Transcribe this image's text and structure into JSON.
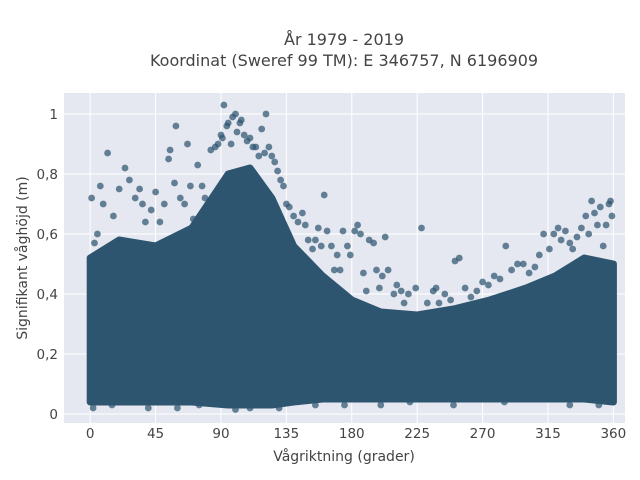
{
  "chart_data": {
    "type": "scatter",
    "title_line1": "År 1979 - 2019",
    "title_line2": "Koordinat (Sweref 99 TM): E 346757, N 6196909",
    "xlabel": "Vågriktning (grader)",
    "ylabel": "Signifikant våghöjd (m)",
    "xlim": [
      -18,
      368
    ],
    "ylim": [
      -0.03,
      1.07
    ],
    "x_ticks": [
      0,
      45,
      90,
      135,
      180,
      225,
      270,
      315,
      360
    ],
    "x_tick_labels": [
      "0",
      "45",
      "90",
      "135",
      "180",
      "225",
      "270",
      "315",
      "360"
    ],
    "y_ticks": [
      0,
      0.2,
      0.4,
      0.6,
      0.8,
      1
    ],
    "y_tick_labels": [
      "0",
      "0,2",
      "0,4",
      "0,6",
      "0,8",
      "1"
    ],
    "grid": true,
    "background_color": "#E5E8F0",
    "marker_color": "#2E5570",
    "bulk_band": [
      [
        0,
        0.04,
        0.52
      ],
      [
        20,
        0.04,
        0.58
      ],
      [
        45,
        0.04,
        0.56
      ],
      [
        70,
        0.04,
        0.62
      ],
      [
        95,
        0.03,
        0.8
      ],
      [
        110,
        0.03,
        0.82
      ],
      [
        125,
        0.03,
        0.72
      ],
      [
        140,
        0.04,
        0.56
      ],
      [
        160,
        0.05,
        0.46
      ],
      [
        180,
        0.05,
        0.38
      ],
      [
        200,
        0.05,
        0.34
      ],
      [
        225,
        0.05,
        0.33
      ],
      [
        250,
        0.05,
        0.35
      ],
      [
        275,
        0.05,
        0.38
      ],
      [
        300,
        0.05,
        0.42
      ],
      [
        320,
        0.05,
        0.46
      ],
      [
        340,
        0.05,
        0.52
      ],
      [
        360,
        0.04,
        0.5
      ]
    ],
    "points": [
      [
        1,
        0.72
      ],
      [
        3,
        0.57
      ],
      [
        5,
        0.6
      ],
      [
        7,
        0.76
      ],
      [
        9,
        0.7
      ],
      [
        12,
        0.87
      ],
      [
        16,
        0.66
      ],
      [
        20,
        0.75
      ],
      [
        24,
        0.82
      ],
      [
        27,
        0.78
      ],
      [
        31,
        0.72
      ],
      [
        34,
        0.75
      ],
      [
        36,
        0.7
      ],
      [
        38,
        0.64
      ],
      [
        42,
        0.68
      ],
      [
        45,
        0.74
      ],
      [
        48,
        0.64
      ],
      [
        51,
        0.7
      ],
      [
        54,
        0.85
      ],
      [
        55,
        0.88
      ],
      [
        58,
        0.77
      ],
      [
        59,
        0.96
      ],
      [
        62,
        0.72
      ],
      [
        65,
        0.7
      ],
      [
        67,
        0.9
      ],
      [
        69,
        0.76
      ],
      [
        71,
        0.65
      ],
      [
        74,
        0.83
      ],
      [
        77,
        0.76
      ],
      [
        79,
        0.72
      ],
      [
        83,
        0.88
      ],
      [
        86,
        0.89
      ],
      [
        88,
        0.9
      ],
      [
        90,
        0.93
      ],
      [
        91,
        0.92
      ],
      [
        92,
        1.03
      ],
      [
        94,
        0.96
      ],
      [
        95,
        0.97
      ],
      [
        97,
        0.9
      ],
      [
        98,
        0.99
      ],
      [
        100,
        1.0
      ],
      [
        101,
        0.94
      ],
      [
        103,
        0.97
      ],
      [
        104,
        0.98
      ],
      [
        106,
        0.93
      ],
      [
        108,
        0.91
      ],
      [
        110,
        0.92
      ],
      [
        112,
        0.89
      ],
      [
        114,
        0.89
      ],
      [
        116,
        0.86
      ],
      [
        118,
        0.95
      ],
      [
        120,
        0.87
      ],
      [
        121,
        1.0
      ],
      [
        123,
        0.89
      ],
      [
        125,
        0.86
      ],
      [
        127,
        0.84
      ],
      [
        129,
        0.81
      ],
      [
        131,
        0.78
      ],
      [
        133,
        0.76
      ],
      [
        135,
        0.7
      ],
      [
        137,
        0.69
      ],
      [
        140,
        0.66
      ],
      [
        143,
        0.64
      ],
      [
        146,
        0.67
      ],
      [
        148,
        0.63
      ],
      [
        150,
        0.58
      ],
      [
        153,
        0.55
      ],
      [
        155,
        0.58
      ],
      [
        157,
        0.62
      ],
      [
        159,
        0.56
      ],
      [
        161,
        0.73
      ],
      [
        163,
        0.61
      ],
      [
        166,
        0.56
      ],
      [
        168,
        0.48
      ],
      [
        170,
        0.53
      ],
      [
        172,
        0.48
      ],
      [
        174,
        0.61
      ],
      [
        177,
        0.56
      ],
      [
        179,
        0.53
      ],
      [
        182,
        0.61
      ],
      [
        184,
        0.63
      ],
      [
        186,
        0.6
      ],
      [
        188,
        0.47
      ],
      [
        190,
        0.41
      ],
      [
        192,
        0.58
      ],
      [
        195,
        0.57
      ],
      [
        197,
        0.48
      ],
      [
        199,
        0.42
      ],
      [
        201,
        0.46
      ],
      [
        203,
        0.59
      ],
      [
        205,
        0.48
      ],
      [
        209,
        0.4
      ],
      [
        211,
        0.43
      ],
      [
        214,
        0.41
      ],
      [
        216,
        0.37
      ],
      [
        219,
        0.4
      ],
      [
        224,
        0.42
      ],
      [
        228,
        0.62
      ],
      [
        232,
        0.37
      ],
      [
        236,
        0.41
      ],
      [
        238,
        0.42
      ],
      [
        240,
        0.37
      ],
      [
        244,
        0.4
      ],
      [
        248,
        0.38
      ],
      [
        251,
        0.51
      ],
      [
        254,
        0.52
      ],
      [
        258,
        0.42
      ],
      [
        262,
        0.39
      ],
      [
        266,
        0.41
      ],
      [
        270,
        0.44
      ],
      [
        274,
        0.43
      ],
      [
        278,
        0.46
      ],
      [
        282,
        0.45
      ],
      [
        286,
        0.56
      ],
      [
        290,
        0.48
      ],
      [
        294,
        0.5
      ],
      [
        298,
        0.5
      ],
      [
        302,
        0.47
      ],
      [
        306,
        0.49
      ],
      [
        309,
        0.53
      ],
      [
        312,
        0.6
      ],
      [
        316,
        0.55
      ],
      [
        319,
        0.6
      ],
      [
        322,
        0.62
      ],
      [
        324,
        0.58
      ],
      [
        327,
        0.61
      ],
      [
        330,
        0.57
      ],
      [
        332,
        0.55
      ],
      [
        335,
        0.59
      ],
      [
        338,
        0.62
      ],
      [
        341,
        0.66
      ],
      [
        343,
        0.6
      ],
      [
        345,
        0.71
      ],
      [
        347,
        0.67
      ],
      [
        349,
        0.63
      ],
      [
        351,
        0.69
      ],
      [
        353,
        0.56
      ],
      [
        355,
        0.63
      ],
      [
        357,
        0.7
      ],
      [
        358,
        0.71
      ],
      [
        359,
        0.66
      ],
      [
        2,
        0.02
      ],
      [
        15,
        0.03
      ],
      [
        40,
        0.02
      ],
      [
        60,
        0.02
      ],
      [
        75,
        0.03
      ],
      [
        100,
        0.015
      ],
      [
        110,
        0.02
      ],
      [
        130,
        0.02
      ],
      [
        155,
        0.03
      ],
      [
        175,
        0.03
      ],
      [
        200,
        0.03
      ],
      [
        220,
        0.04
      ],
      [
        250,
        0.03
      ],
      [
        285,
        0.04
      ],
      [
        330,
        0.03
      ],
      [
        350,
        0.03
      ]
    ]
  }
}
